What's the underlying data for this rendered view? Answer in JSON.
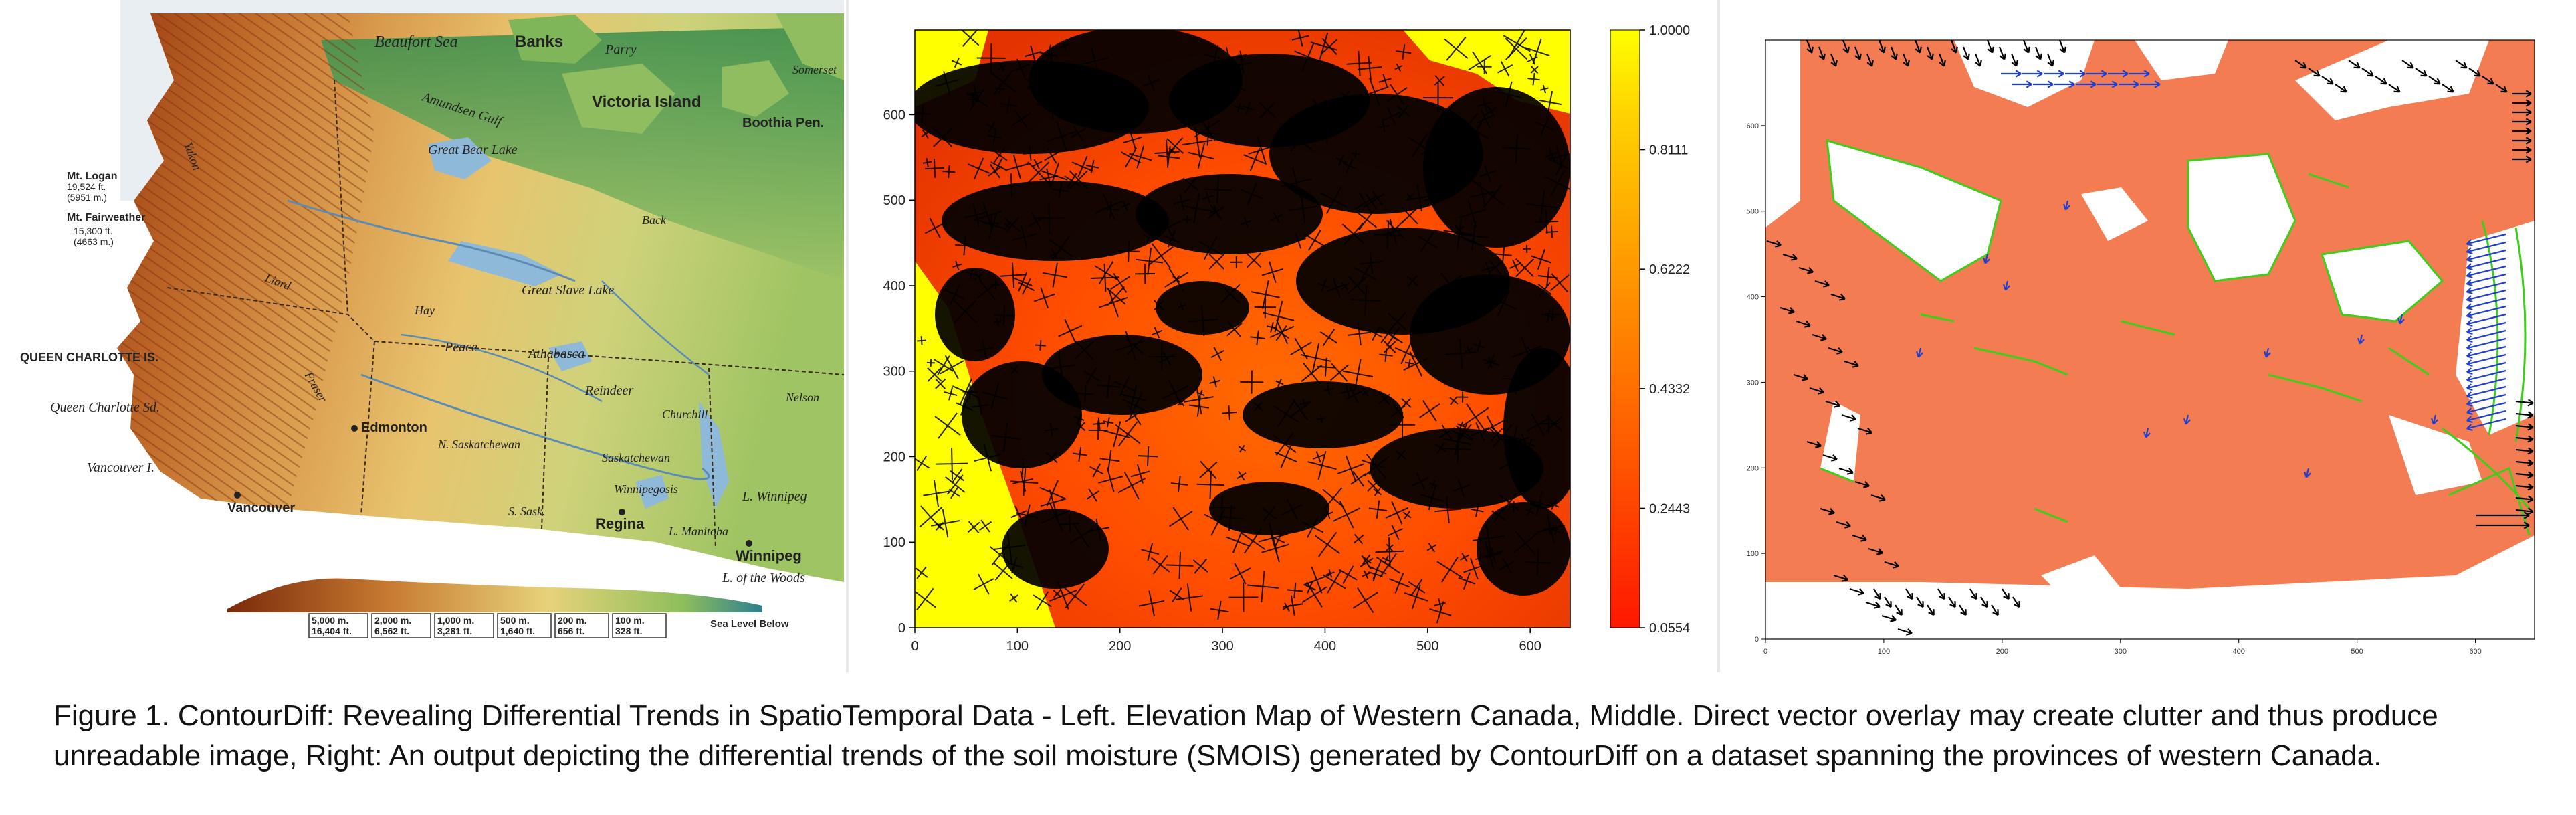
{
  "left_map": {
    "labels": {
      "beaufort_sea": "Beaufort Sea",
      "banks": "Banks",
      "parry": "Parry",
      "somerset": "Somerset",
      "victoria_island": "Victoria Island",
      "boothia_pen": "Boothia Pen.",
      "amundsen_gulf": "Amundsen Gulf",
      "great_bear_lake": "Great Bear Lake",
      "great_slave_lake": "Great Slave Lake",
      "mt_logan": "Mt. Logan",
      "mt_logan_ft": "19,524 ft.",
      "mt_logan_m": "(5951 m.)",
      "mt_fairweather": "Mt. Fairweather",
      "mt_fairweather_ft": "15,300 ft.",
      "mt_fairweather_m": "(4663 m.)",
      "queen_charlotte_is": "QUEEN CHARLOTTE IS.",
      "queen_charlotte_sd": "Queen Charlotte Sd.",
      "vancouver_i": "Vancouver I.",
      "vancouver": "Vancouver",
      "edmonton": "Edmonton",
      "regina": "Regina",
      "winnipeg_city": "Winnipeg",
      "lake_winnipeg": "L. Winnipeg",
      "winnipegosis": "Winnipegosis",
      "manitoba": "L. Manitoba",
      "lake_of_the_woods": "L. of the Woods",
      "peace": "Peace",
      "athabasca": "Athabasca",
      "reindeer": "Reindeer",
      "churchill": "Churchill",
      "nelson": "Nelson",
      "hay": "Hay",
      "back": "Back",
      "n_saskatchewan": "N. Saskatchewan",
      "saskatchewan": "Saskatchewan",
      "s_sask": "S. Sask.",
      "fraser": "Fraser",
      "liard": "Liard",
      "yukon": "Yukon"
    },
    "legend": [
      {
        "m": "5,000 m.",
        "ft": "16,404 ft."
      },
      {
        "m": "2,000 m.",
        "ft": "6,562 ft."
      },
      {
        "m": "1,000 m.",
        "ft": "3,281 ft."
      },
      {
        "m": "500 m.",
        "ft": "1,640 ft."
      },
      {
        "m": "200 m.",
        "ft": "656 ft."
      },
      {
        "m": "100 m.",
        "ft": "328 ft."
      }
    ],
    "sea_level": "Sea Level Below"
  },
  "chart_data": [
    {
      "type": "heatmap",
      "title": "",
      "x_ticks": [
        0,
        100,
        200,
        300,
        400,
        500,
        600
      ],
      "y_ticks": [
        0,
        100,
        200,
        300,
        400,
        500,
        600
      ],
      "xlim": [
        0,
        639
      ],
      "ylim": [
        0,
        699
      ],
      "colorbar_ticks": [
        "1.0000",
        "0.8111",
        "0.6222",
        "0.4332",
        "0.2443",
        "0.0554"
      ],
      "colorbar_range": [
        0.0554,
        1.0
      ],
      "colors": {
        "high": "#ffff00",
        "mid": "#ff8c00",
        "low": "#ff1a00",
        "overlay": "#000000"
      }
    },
    {
      "type": "heatmap",
      "title": "",
      "x_ticks": [
        0,
        100,
        200,
        300,
        400,
        500,
        600
      ],
      "y_ticks": [
        0,
        100,
        200,
        300,
        400,
        500,
        600
      ],
      "xlim": [
        0,
        650
      ],
      "ylim": [
        0,
        700
      ],
      "colors": {
        "fill": "#f47c52",
        "contour": "#3ccf1a",
        "arrows": "#1f3fd0",
        "edge": "#000000"
      }
    }
  ],
  "caption": "Figure 1. ContourDiff: Revealing Differential Trends in SpatioTemporal Data - Left. Elevation Map of Western Canada, Middle. Direct vector overlay may create clutter and thus produce unreadable image, Right: An output depicting the differential trends of the soil moisture (SMOIS) generated by ContourDiff on a dataset spanning the provinces of western Canada."
}
